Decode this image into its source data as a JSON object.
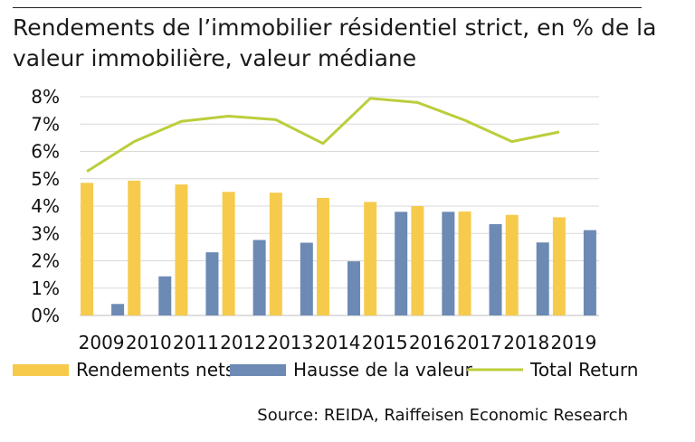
{
  "title": "Rendements de l’immobilier résidentiel strict, en % de la valeur immobilière, valeur médiane",
  "source": "Source: REIDA, Raiffeisen Economic Research",
  "chart_data": {
    "type": "bar",
    "categories": [
      "2009",
      "2010",
      "2011",
      "2012",
      "2013",
      "2014",
      "2015",
      "2016",
      "2017",
      "2018",
      "2019"
    ],
    "series": [
      {
        "name": "Rendements nets",
        "kind": "bar",
        "color": "#f6cb4c",
        "values": [
          4.85,
          4.93,
          4.79,
          4.52,
          4.49,
          4.3,
          4.15,
          4.0,
          3.8,
          3.68,
          3.59
        ]
      },
      {
        "name": "Hausse de la valeur",
        "kind": "bar",
        "color": "#6c8ab3",
        "values": [
          0.42,
          1.43,
          2.31,
          2.76,
          2.66,
          1.98,
          3.79,
          3.79,
          3.34,
          2.67,
          3.12
        ]
      },
      {
        "name": "Total Return",
        "kind": "line",
        "color": "#bccd3b",
        "values": [
          5.27,
          6.36,
          7.1,
          7.29,
          7.16,
          6.29,
          7.94,
          7.79,
          7.14,
          6.36,
          6.71
        ]
      }
    ],
    "yticks": [
      "0%",
      "1%",
      "2%",
      "3%",
      "4%",
      "5%",
      "6%",
      "7%",
      "8%"
    ],
    "ylim": [
      0,
      8
    ],
    "grid": true,
    "legend_position": "bottom"
  }
}
